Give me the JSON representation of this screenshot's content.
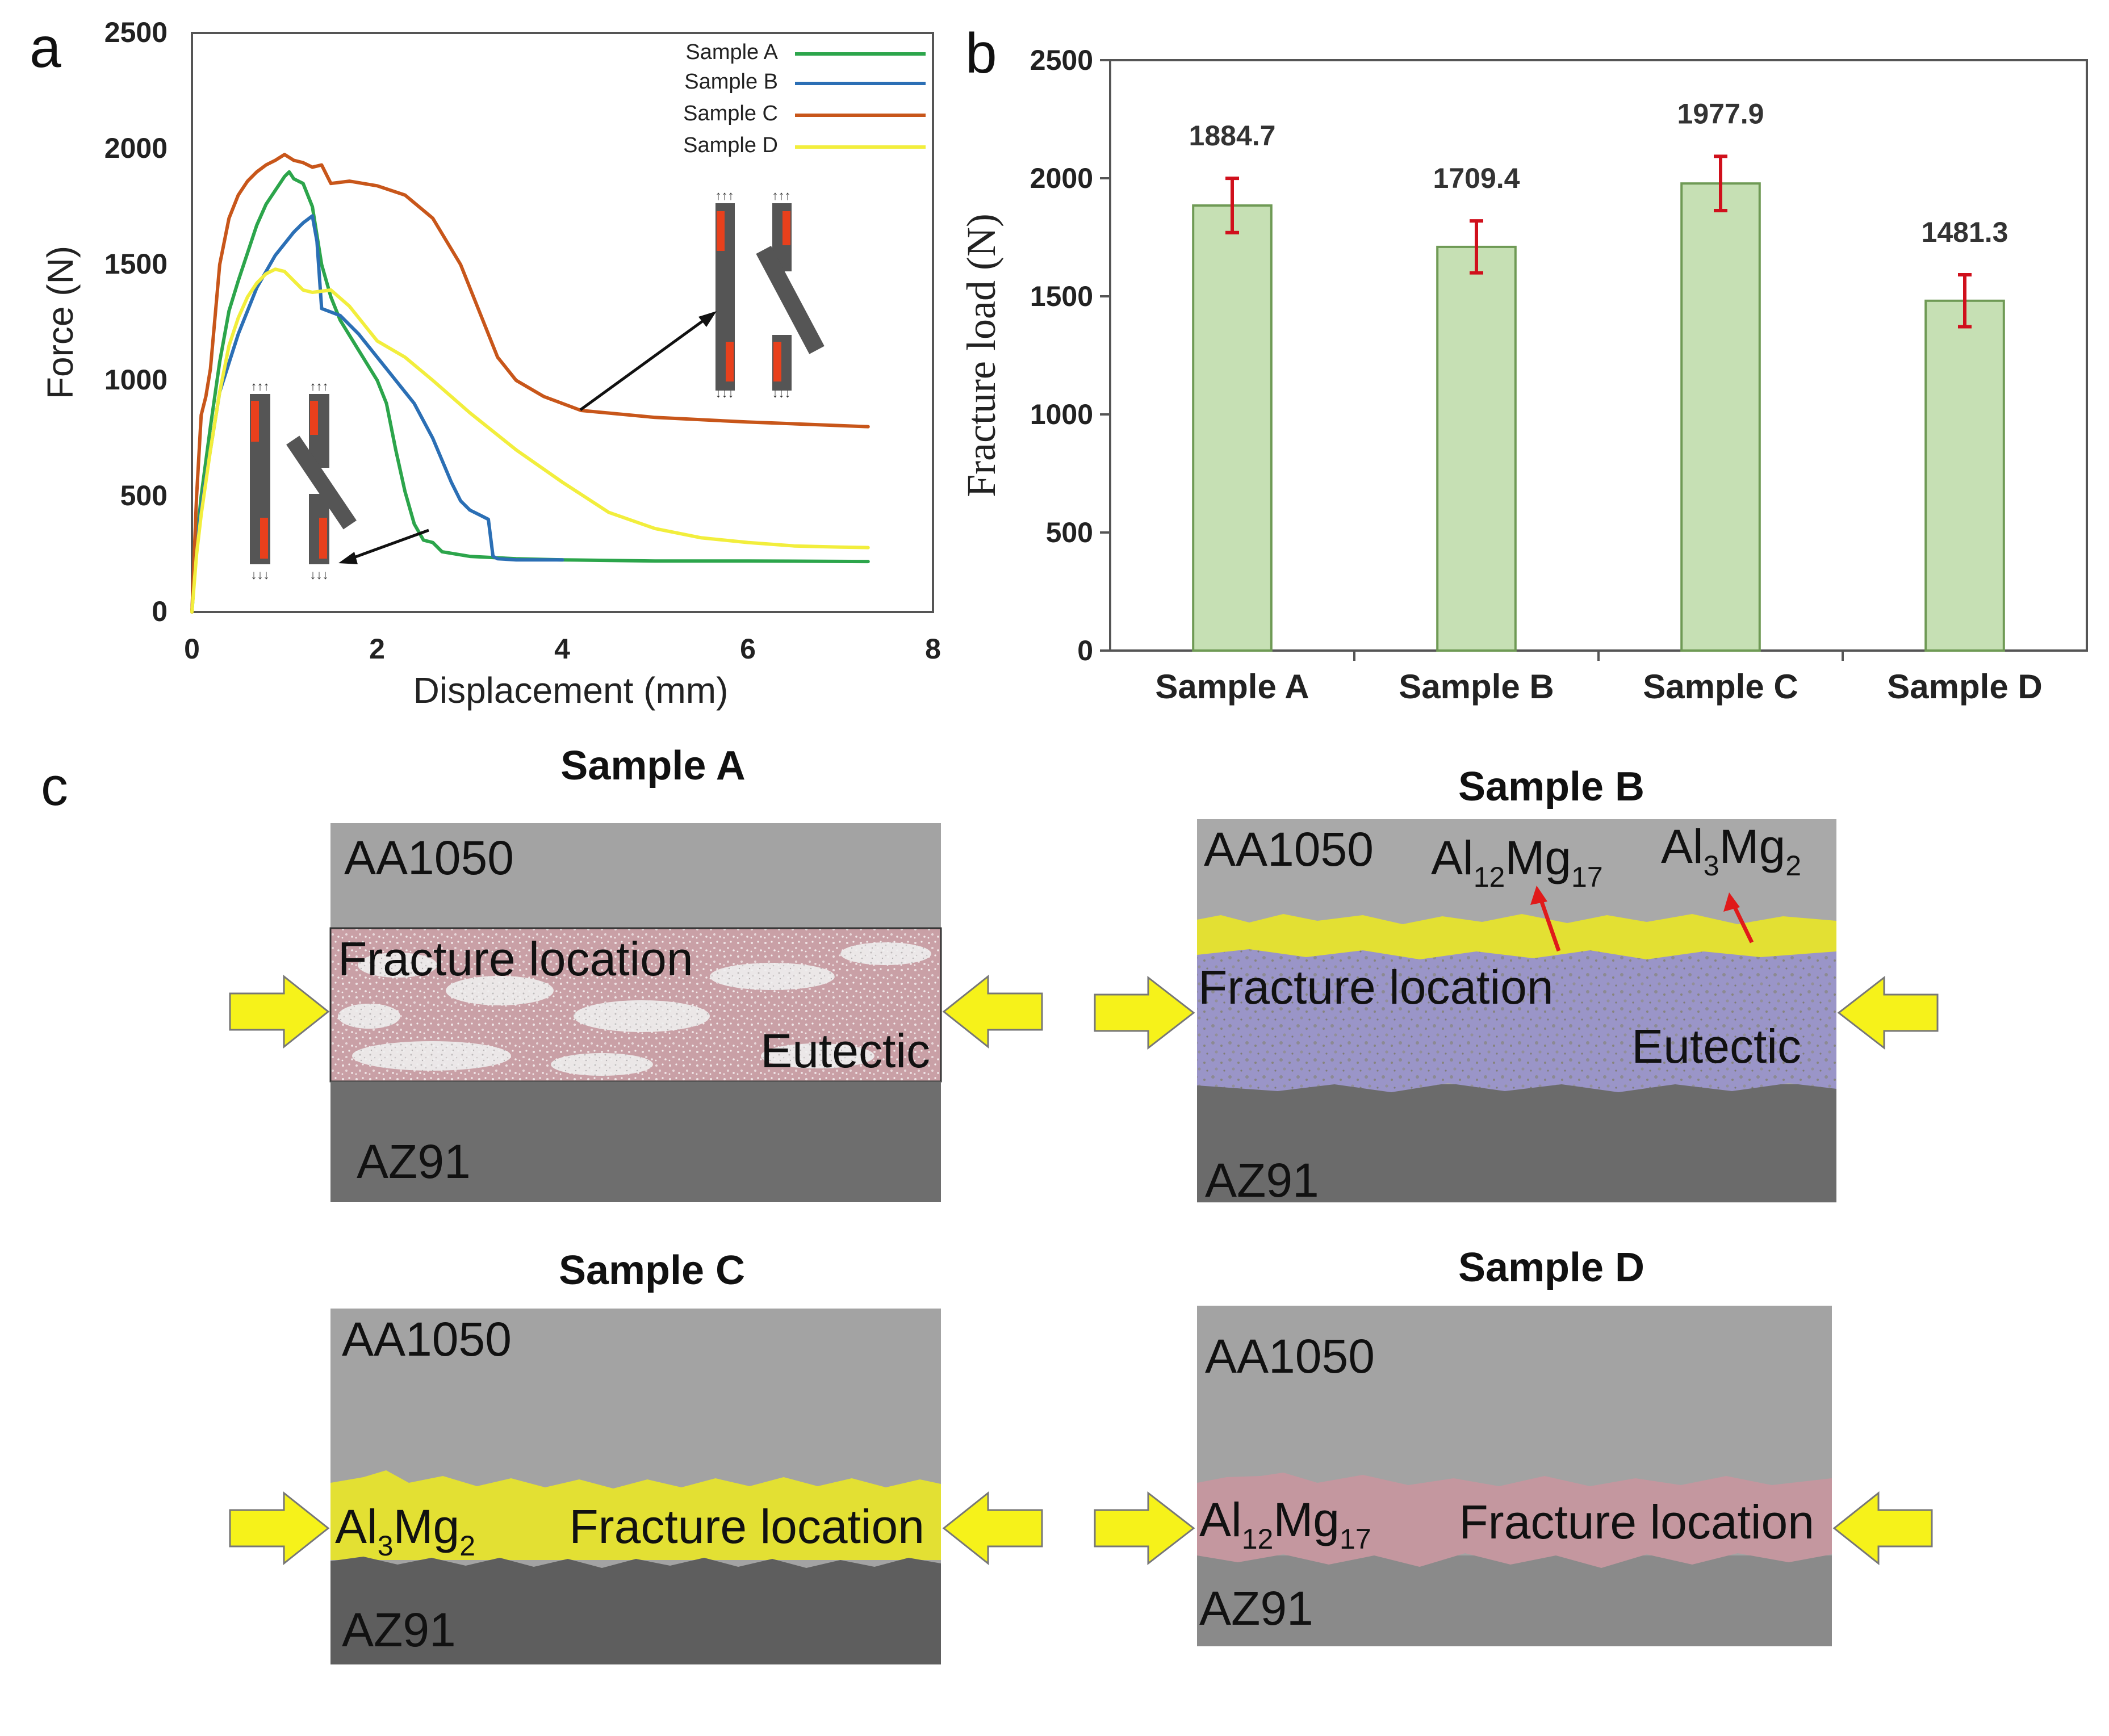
{
  "panels": {
    "a": {
      "label": "a",
      "y_ticks": [
        "0",
        "500",
        "1000",
        "1500",
        "2000",
        "2500"
      ],
      "x_ticks": [
        "0",
        "2",
        "4",
        "6",
        "8"
      ]
    },
    "b": {
      "label": "b"
    },
    "c": {
      "label": "c",
      "samples": [
        {
          "title": "Sample A",
          "top": "AA1050",
          "bottom": "AZ91",
          "fracture": "Fracture location",
          "phase": "Eutectic"
        },
        {
          "title": "Sample B",
          "top": "AA1050",
          "bottom": "AZ91",
          "fracture": "Fracture location",
          "phase": "Eutectic",
          "phase1": {
            "base": "Al",
            "s1": "12",
            "mid": "Mg",
            "s2": "17"
          },
          "phase2": {
            "base": "Al",
            "s1": "3",
            "mid": "Mg",
            "s2": "2"
          }
        },
        {
          "title": "Sample C",
          "top": "AA1050",
          "bottom": "AZ91",
          "fracture": "Fracture location",
          "phase1": {
            "base": "Al",
            "s1": "3",
            "mid": "Mg",
            "s2": "2"
          }
        },
        {
          "title": "Sample D",
          "top": "AA1050",
          "bottom": "AZ91",
          "fracture": "Fracture location",
          "phase1": {
            "base": "Al",
            "s1": "12",
            "mid": "Mg",
            "s2": "17"
          }
        }
      ]
    }
  },
  "colors": {
    "sample_a": "#2ca54b",
    "sample_b": "#2b6fb5",
    "sample_c": "#c8561a",
    "sample_d": "#f2ee3c",
    "bar_fill": "#c6e0b4",
    "bar_edge": "#6f9a55",
    "error_bar": "#d0101c",
    "gray_top": "#a3a3a3",
    "gray_bottom": "#6e6e6e",
    "yellow_layer": "#e3e033",
    "pink_layer": "#c4979f",
    "purple_layer": "#9a95c8",
    "arrow_fill": "#f6f21a"
  },
  "chart_data": [
    {
      "type": "line",
      "title": "",
      "xlabel": "Displacement (mm)",
      "ylabel": "Force (N)",
      "xlim": [
        0,
        8
      ],
      "ylim": [
        0,
        2500
      ],
      "grid": false,
      "legend_position": "top-right",
      "series": [
        {
          "name": "Sample A",
          "color": "#2ca54b",
          "x": [
            0,
            0.05,
            0.1,
            0.2,
            0.3,
            0.4,
            0.5,
            0.6,
            0.7,
            0.8,
            0.9,
            1.0,
            1.05,
            1.1,
            1.2,
            1.3,
            1.4,
            1.5,
            1.6,
            1.8,
            2.0,
            2.1,
            2.2,
            2.3,
            2.4,
            2.5,
            2.6,
            2.7,
            3.0,
            3.5,
            4.0,
            5.0,
            6.0,
            7.3
          ],
          "y": [
            0,
            300,
            500,
            800,
            1080,
            1300,
            1430,
            1550,
            1670,
            1760,
            1820,
            1880,
            1900,
            1870,
            1850,
            1750,
            1500,
            1360,
            1260,
            1130,
            1000,
            900,
            700,
            520,
            380,
            310,
            300,
            260,
            240,
            230,
            225,
            220,
            220,
            218
          ]
        },
        {
          "name": "Sample B",
          "color": "#2b6fb5",
          "x": [
            0,
            0.05,
            0.1,
            0.2,
            0.3,
            0.5,
            0.7,
            0.9,
            1.1,
            1.2,
            1.3,
            1.35,
            1.4,
            1.6,
            1.8,
            2.0,
            2.2,
            2.4,
            2.6,
            2.8,
            2.9,
            3.0,
            3.1,
            3.2,
            3.25,
            3.3,
            3.5,
            3.8,
            4.0
          ],
          "y": [
            0,
            280,
            450,
            700,
            950,
            1200,
            1400,
            1540,
            1640,
            1680,
            1710,
            1600,
            1310,
            1280,
            1200,
            1100,
            1000,
            900,
            750,
            560,
            480,
            440,
            420,
            400,
            240,
            230,
            225,
            225,
            225
          ]
        },
        {
          "name": "Sample C",
          "color": "#c8561a",
          "x": [
            0,
            0.05,
            0.1,
            0.15,
            0.2,
            0.3,
            0.4,
            0.5,
            0.6,
            0.7,
            0.8,
            0.9,
            1.0,
            1.1,
            1.2,
            1.3,
            1.4,
            1.5,
            1.7,
            2.0,
            2.3,
            2.6,
            2.9,
            3.1,
            3.3,
            3.5,
            3.8,
            4.2,
            5.0,
            6.0,
            7.3
          ],
          "y": [
            0,
            500,
            850,
            930,
            1050,
            1500,
            1700,
            1800,
            1860,
            1900,
            1930,
            1950,
            1975,
            1950,
            1940,
            1920,
            1930,
            1850,
            1860,
            1840,
            1800,
            1700,
            1500,
            1300,
            1100,
            1000,
            930,
            870,
            840,
            820,
            800
          ]
        },
        {
          "name": "Sample D",
          "color": "#f2ee3c",
          "x": [
            0,
            0.05,
            0.1,
            0.2,
            0.3,
            0.4,
            0.5,
            0.6,
            0.7,
            0.8,
            0.9,
            1.0,
            1.1,
            1.2,
            1.3,
            1.5,
            1.7,
            2.0,
            2.3,
            2.6,
            3.0,
            3.5,
            4.0,
            4.5,
            5.0,
            5.5,
            6.0,
            6.5,
            7.0,
            7.3
          ],
          "y": [
            0,
            250,
            420,
            700,
            950,
            1150,
            1270,
            1360,
            1420,
            1460,
            1480,
            1470,
            1430,
            1390,
            1380,
            1390,
            1320,
            1170,
            1100,
            1000,
            860,
            700,
            560,
            430,
            360,
            320,
            300,
            285,
            280,
            278
          ]
        }
      ]
    },
    {
      "type": "bar",
      "title": "",
      "xlabel": "",
      "ylabel": "Fracture load (N)",
      "ylim": [
        0,
        2500
      ],
      "y_ticks": [
        0,
        500,
        1000,
        1500,
        2000,
        2500
      ],
      "categories": [
        "Sample A",
        "Sample B",
        "Sample C",
        "Sample D"
      ],
      "values": [
        1884.7,
        1709.4,
        1977.9,
        1481.3
      ],
      "value_labels": [
        "1884.7",
        "1709.4",
        "1977.9",
        "1481.3"
      ],
      "errors": [
        115,
        110,
        115,
        110
      ],
      "grid": false
    }
  ]
}
